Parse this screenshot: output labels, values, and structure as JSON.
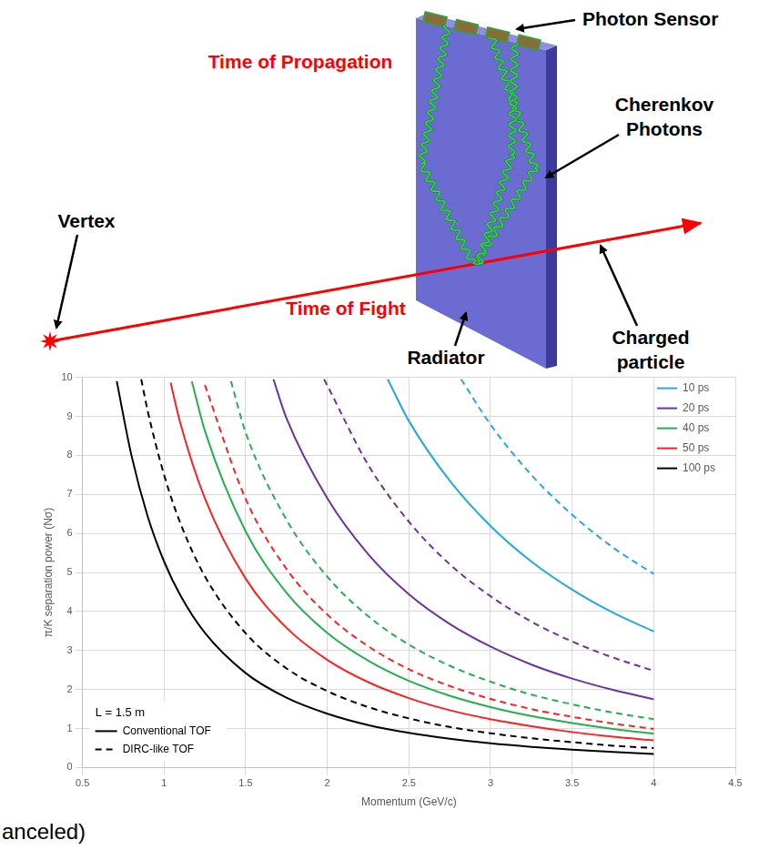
{
  "diagram": {
    "photon_sensor": "Photon Sensor",
    "time_of_propagation": "Time of Propagation",
    "cherenkov_photons": "Cherenkov Photons",
    "vertex": "Vertex",
    "time_of_flight": "Time of Fight",
    "radiator": "Radiator",
    "charged_particle": "Charged particle"
  },
  "footer": "anceled)",
  "chart_data": {
    "type": "line",
    "x_label": "Momentum (GeV/c)",
    "y_label": "π/K separation power (Nσ)",
    "xlim": [
      0.5,
      4.5
    ],
    "xticks": [
      0.5,
      1,
      1.5,
      2,
      2.5,
      3,
      3.5,
      4,
      4.5
    ],
    "ylim": [
      0,
      10
    ],
    "yticks": [
      0,
      1,
      2,
      3,
      4,
      5,
      6,
      7,
      8,
      9,
      10
    ],
    "grid": true,
    "legend": "top-right",
    "annotations": [
      "L = 1.5 m"
    ],
    "style_legend": [
      {
        "label": "Conventional TOF",
        "line_style": "solid"
      },
      {
        "label": "DIRC-like TOF",
        "line_style": "dashed"
      }
    ],
    "series": [
      {
        "name": "10 ps",
        "color": "#21a9e1",
        "line_style": "solid",
        "x": [
          2.37,
          2.5,
          2.75,
          3,
          3.25,
          3.5,
          3.75,
          4
        ],
        "values": [
          9.95,
          8.88,
          7.35,
          6.19,
          5.28,
          4.56,
          3.97,
          3.49
        ]
      },
      {
        "name": "10 ps",
        "color": "#21a9e1",
        "line_style": "dashed",
        "x": [
          2.82,
          3,
          3.25,
          3.5,
          3.75,
          4
        ],
        "values": [
          9.95,
          8.79,
          7.5,
          6.48,
          5.64,
          4.96
        ]
      },
      {
        "name": "20 ps",
        "color": "#7030a0",
        "line_style": "solid",
        "x": [
          1.67,
          1.75,
          2,
          2.25,
          2.5,
          2.75,
          3,
          3.25,
          3.5,
          3.75,
          4
        ],
        "values": [
          9.95,
          8.95,
          6.9,
          5.47,
          4.44,
          3.68,
          3.1,
          2.64,
          2.28,
          1.99,
          1.75
        ]
      },
      {
        "name": "20 ps",
        "color": "#7030a0",
        "line_style": "dashed",
        "x": [
          1.98,
          2,
          2.25,
          2.5,
          2.75,
          3,
          3.25,
          3.5,
          3.75,
          4
        ],
        "values": [
          9.95,
          9.79,
          7.76,
          6.3,
          5.21,
          4.39,
          3.74,
          3.23,
          2.82,
          2.48
        ]
      },
      {
        "name": "40 ps",
        "color": "#22b14c",
        "line_style": "solid",
        "x": [
          1.17,
          1.25,
          1.5,
          1.75,
          2,
          2.25,
          2.5,
          2.75,
          3,
          3.25,
          3.5,
          3.75,
          4
        ],
        "values": [
          9.9,
          8.63,
          6.05,
          4.48,
          3.45,
          2.74,
          2.22,
          1.84,
          1.55,
          1.32,
          1.14,
          0.99,
          0.87
        ]
      },
      {
        "name": "40 ps",
        "color": "#22b14c",
        "line_style": "dashed",
        "x": [
          1.41,
          1.5,
          1.75,
          2,
          2.25,
          2.5,
          2.75,
          3,
          3.25,
          3.5,
          3.75,
          4
        ],
        "values": [
          9.9,
          8.58,
          6.35,
          4.89,
          3.88,
          3.15,
          2.61,
          2.2,
          1.87,
          1.62,
          1.41,
          1.24
        ]
      },
      {
        "name": "50 ps",
        "color": "#ff2020",
        "line_style": "solid",
        "x": [
          1.04,
          1.1,
          1.25,
          1.5,
          1.75,
          2,
          2.25,
          2.5,
          2.75,
          3,
          3.25,
          3.5,
          3.75,
          4
        ],
        "values": [
          9.86,
          8.82,
          6.9,
          4.84,
          3.58,
          2.76,
          2.19,
          1.78,
          1.47,
          1.24,
          1.06,
          0.91,
          0.79,
          0.7
        ]
      },
      {
        "name": "50 ps",
        "color": "#ff2020",
        "line_style": "dashed",
        "x": [
          1.25,
          1.5,
          1.75,
          2,
          2.25,
          2.5,
          2.75,
          3,
          3.25,
          3.5,
          3.75,
          4
        ],
        "values": [
          9.8,
          6.88,
          5.09,
          3.92,
          3.11,
          2.52,
          2.09,
          1.76,
          1.5,
          1.3,
          1.13,
          0.99
        ]
      },
      {
        "name": "100 ps",
        "color": "#000000",
        "line_style": "solid",
        "x": [
          0.71,
          0.8,
          0.9,
          1,
          1.1,
          1.25,
          1.5,
          1.75,
          2,
          2.25,
          2.5,
          2.75,
          3,
          3.25,
          3.5,
          3.75,
          4
        ],
        "values": [
          9.9,
          8.0,
          6.43,
          5.28,
          4.41,
          3.45,
          2.42,
          1.79,
          1.38,
          1.09,
          0.89,
          0.74,
          0.62,
          0.53,
          0.46,
          0.4,
          0.35
        ]
      },
      {
        "name": "100 ps",
        "color": "#000000",
        "line_style": "dashed",
        "x": [
          0.86,
          0.9,
          1,
          1.1,
          1.25,
          1.5,
          1.75,
          2,
          2.25,
          2.5,
          2.75,
          3,
          3.25,
          3.5,
          3.75,
          4
        ],
        "values": [
          9.95,
          9.13,
          7.5,
          6.26,
          4.9,
          3.44,
          2.54,
          1.96,
          1.55,
          1.26,
          1.04,
          0.88,
          0.75,
          0.65,
          0.56,
          0.5
        ]
      }
    ]
  }
}
